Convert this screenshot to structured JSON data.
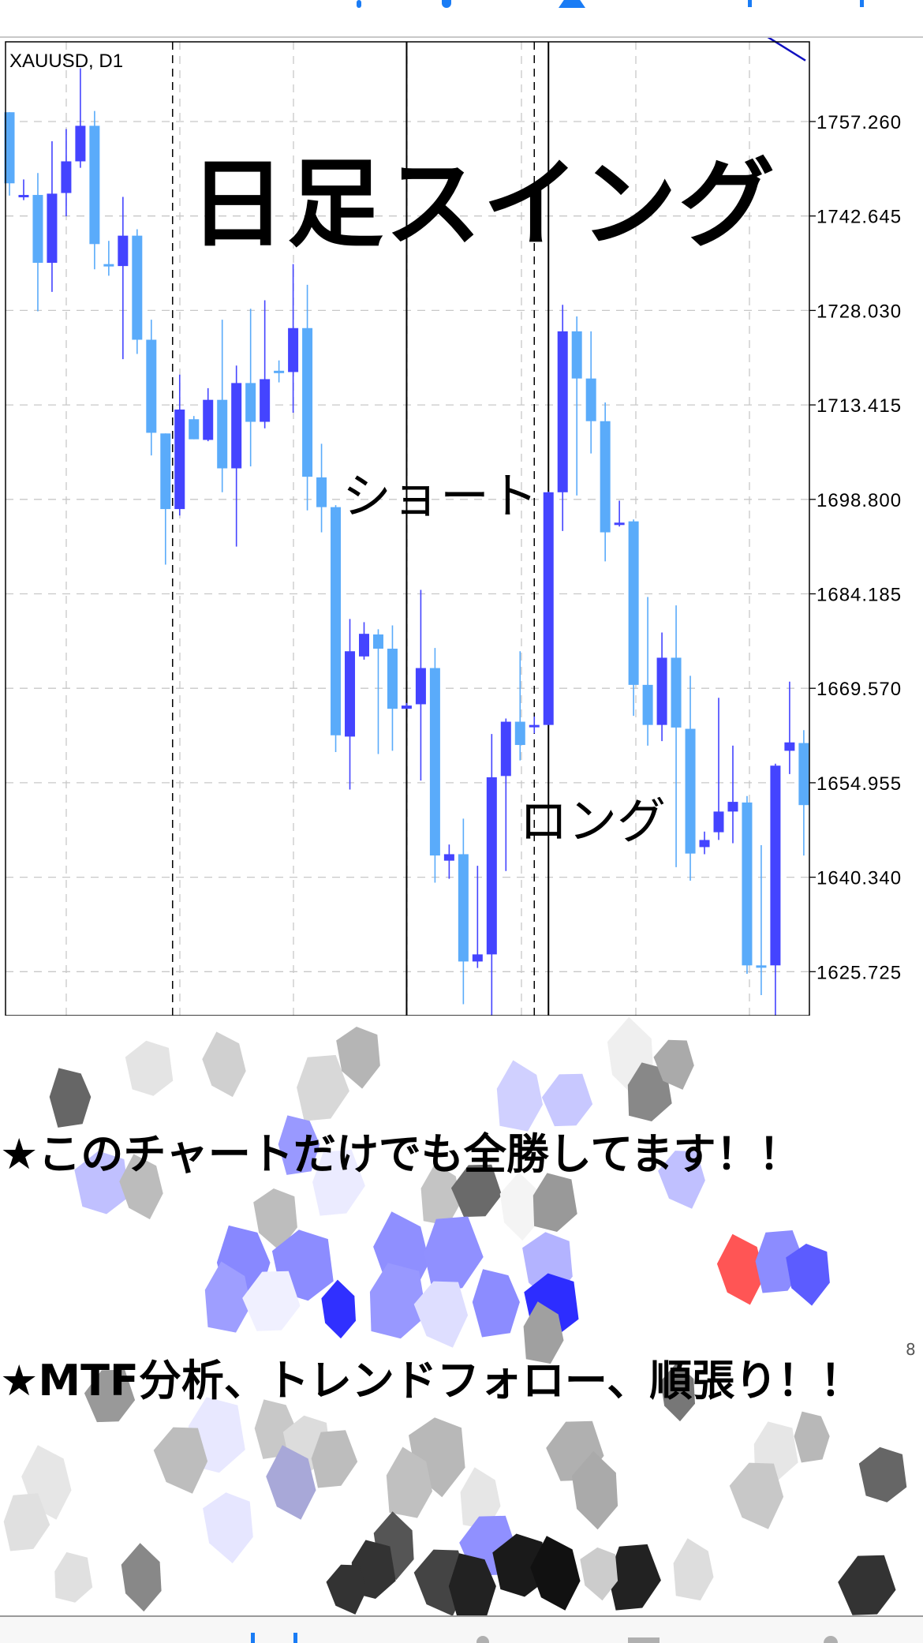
{
  "top_bar": {
    "icon": "partial-toolbar-icons",
    "accent": "#1a7cf5"
  },
  "chart": {
    "symbol_label": "XAUUSD, D1",
    "title_overlay": "日足スイング",
    "annotation_short": "ショート",
    "annotation_long": "ロング",
    "colors": {
      "bull": "#4444ff",
      "bear": "#5aabfa",
      "ma": "#1010c0",
      "grid": "#c8c8c8"
    }
  },
  "chart_data": {
    "type": "candlestick",
    "symbol": "XAUUSD",
    "timeframe": "D1",
    "y_ticks": [
      "1757.260",
      "1742.645",
      "1728.030",
      "1713.415",
      "1698.800",
      "1684.185",
      "1669.570",
      "1654.955",
      "1640.340",
      "1625.725"
    ],
    "ylim": [
      1612,
      1773
    ],
    "grid": true,
    "candles": [
      {
        "o": 1758.7,
        "h": 1758.7,
        "l": 1745.8,
        "c": 1747.7
      },
      {
        "o": 1745.9,
        "h": 1748.3,
        "l": 1745.1,
        "c": 1745.9,
        "bull": true
      },
      {
        "o": 1745.9,
        "h": 1749.3,
        "l": 1727.9,
        "c": 1735.4
      },
      {
        "o": 1735.4,
        "h": 1754.2,
        "l": 1730.9,
        "c": 1746.1
      },
      {
        "o": 1746.2,
        "h": 1756.1,
        "l": 1742.6,
        "c": 1751.1
      },
      {
        "o": 1751.1,
        "h": 1765.5,
        "l": 1750.1,
        "c": 1756.6
      },
      {
        "o": 1756.6,
        "h": 1758.9,
        "l": 1734.4,
        "c": 1738.3
      },
      {
        "o": 1735.2,
        "h": 1738.8,
        "l": 1733.4,
        "c": 1735.2,
        "bull": false
      },
      {
        "o": 1734.9,
        "h": 1745.6,
        "l": 1720.5,
        "c": 1739.6
      },
      {
        "o": 1739.6,
        "h": 1740.6,
        "l": 1721.3,
        "c": 1723.5
      },
      {
        "o": 1723.5,
        "h": 1726.6,
        "l": 1705.6,
        "c": 1709.1
      },
      {
        "o": 1709.0,
        "h": 1709.0,
        "l": 1688.7,
        "c": 1697.3
      },
      {
        "o": 1697.3,
        "h": 1718.1,
        "l": 1696.3,
        "c": 1712.7
      },
      {
        "o": 1711.2,
        "h": 1711.7,
        "l": 1708.1,
        "c": 1708.1
      },
      {
        "o": 1708.0,
        "h": 1716.0,
        "l": 1707.8,
        "c": 1714.2
      },
      {
        "o": 1714.2,
        "h": 1726.6,
        "l": 1699.9,
        "c": 1703.6
      },
      {
        "o": 1703.6,
        "h": 1719.5,
        "l": 1691.5,
        "c": 1716.8
      },
      {
        "o": 1716.8,
        "h": 1728.3,
        "l": 1703.9,
        "c": 1710.8
      },
      {
        "o": 1710.8,
        "h": 1729.6,
        "l": 1709.8,
        "c": 1717.4
      },
      {
        "o": 1718.7,
        "h": 1720.3,
        "l": 1716.9,
        "c": 1718.7,
        "bull": false
      },
      {
        "o": 1718.5,
        "h": 1735.2,
        "l": 1712.2,
        "c": 1725.3
      },
      {
        "o": 1725.3,
        "h": 1732.0,
        "l": 1697.1,
        "c": 1702.3
      },
      {
        "o": 1702.2,
        "h": 1707.4,
        "l": 1693.7,
        "c": 1697.6
      },
      {
        "o": 1697.6,
        "h": 1697.9,
        "l": 1659.7,
        "c": 1662.3
      },
      {
        "o": 1662.1,
        "h": 1680.3,
        "l": 1653.9,
        "c": 1675.3
      },
      {
        "o": 1674.5,
        "h": 1679.8,
        "l": 1674.0,
        "c": 1678.0
      },
      {
        "o": 1677.9,
        "h": 1678.7,
        "l": 1659.4,
        "c": 1675.7
      },
      {
        "o": 1675.7,
        "h": 1679.3,
        "l": 1659.9,
        "c": 1666.4
      },
      {
        "o": 1666.4,
        "h": 1667.3,
        "l": 1666.4,
        "c": 1666.9,
        "bull": true
      },
      {
        "o": 1667.1,
        "h": 1684.8,
        "l": 1655.3,
        "c": 1672.7
      },
      {
        "o": 1672.7,
        "h": 1675.8,
        "l": 1639.5,
        "c": 1643.7
      },
      {
        "o": 1642.9,
        "h": 1645.4,
        "l": 1640.1,
        "c": 1643.9
      },
      {
        "o": 1643.9,
        "h": 1649.4,
        "l": 1620.7,
        "c": 1627.3
      },
      {
        "o": 1627.3,
        "h": 1642.1,
        "l": 1626.3,
        "c": 1628.4
      },
      {
        "o": 1628.4,
        "h": 1662.5,
        "l": 1618.7,
        "c": 1655.8
      },
      {
        "o": 1656.0,
        "h": 1664.9,
        "l": 1641.3,
        "c": 1664.4
      },
      {
        "o": 1664.4,
        "h": 1675.3,
        "l": 1658.4,
        "c": 1660.8
      },
      {
        "o": 1663.9,
        "h": 1665.2,
        "l": 1662.6,
        "c": 1663.9,
        "bull": true
      },
      {
        "o": 1663.9,
        "h": 1700.0,
        "l": 1663.9,
        "c": 1699.9
      },
      {
        "o": 1699.9,
        "h": 1728.9,
        "l": 1693.9,
        "c": 1724.8
      },
      {
        "o": 1724.8,
        "h": 1727.1,
        "l": 1699.4,
        "c": 1717.5
      },
      {
        "o": 1717.5,
        "h": 1724.8,
        "l": 1705.9,
        "c": 1710.9
      },
      {
        "o": 1710.9,
        "h": 1713.8,
        "l": 1689.2,
        "c": 1693.7
      },
      {
        "o": 1695.2,
        "h": 1698.6,
        "l": 1694.6,
        "c": 1695.2,
        "bull": true
      },
      {
        "o": 1695.4,
        "h": 1695.7,
        "l": 1665.3,
        "c": 1670.1
      },
      {
        "o": 1670.1,
        "h": 1683.7,
        "l": 1660.7,
        "c": 1663.9
      },
      {
        "o": 1663.9,
        "h": 1678.2,
        "l": 1661.4,
        "c": 1674.3
      },
      {
        "o": 1674.3,
        "h": 1682.4,
        "l": 1641.9,
        "c": 1663.5
      },
      {
        "o": 1663.3,
        "h": 1671.5,
        "l": 1639.8,
        "c": 1644.0
      },
      {
        "o": 1645.0,
        "h": 1647.4,
        "l": 1643.9,
        "c": 1646.1
      },
      {
        "o": 1647.3,
        "h": 1668.1,
        "l": 1646.1,
        "c": 1650.5
      },
      {
        "o": 1650.5,
        "h": 1660.7,
        "l": 1645.6,
        "c": 1652.0
      },
      {
        "o": 1651.9,
        "h": 1652.9,
        "l": 1625.4,
        "c": 1626.7
      },
      {
        "o": 1626.7,
        "h": 1645.3,
        "l": 1622.1,
        "c": 1626.7,
        "bull": false
      },
      {
        "o": 1626.7,
        "h": 1657.9,
        "l": 1618.7,
        "c": 1657.6
      },
      {
        "o": 1659.9,
        "h": 1670.6,
        "l": 1656.3,
        "c": 1661.2
      },
      {
        "o": 1661.1,
        "h": 1663.1,
        "l": 1643.7,
        "c": 1651.5
      }
    ],
    "moving_average_tail": [
      1775.0,
      1770.5,
      1766.7
    ],
    "vertical_markers": [
      {
        "candle": 11.5,
        "style": "dashed"
      },
      {
        "candle": 28,
        "style": "solid"
      },
      {
        "candle": 37,
        "style": "dashed"
      },
      {
        "candle": 38,
        "style": "solid"
      }
    ]
  },
  "captions": {
    "line1": "★このチャートだけでも全勝してます！！",
    "line2": "★MTF分析、トレンドフォロー、順張り！！",
    "corner_mark": "8"
  },
  "bottom_bar": {
    "icon": "partial-tab-bar-icons",
    "accent": "#1a7cf5"
  }
}
